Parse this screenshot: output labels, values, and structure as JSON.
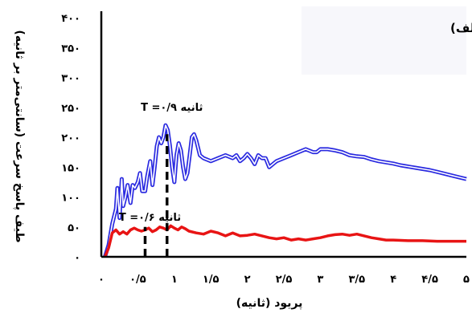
{
  "chart_data": {
    "type": "line",
    "panel_label": "(الف)",
    "xlabel": "پریود (ثانیه)",
    "ylabel": "طیف پاسخ سرعت (سانتی‌متر بر ثانیه)",
    "xlim": [
      0,
      5
    ],
    "ylim": [
      0,
      400
    ],
    "x_ticks": [
      {
        "value": 0,
        "label": "۰"
      },
      {
        "value": 0.5,
        "label": "۰/۵"
      },
      {
        "value": 1,
        "label": "۱"
      },
      {
        "value": 1.5,
        "label": "۱/۵"
      },
      {
        "value": 2,
        "label": "۲"
      },
      {
        "value": 2.5,
        "label": "۲/۵"
      },
      {
        "value": 3,
        "label": "۳"
      },
      {
        "value": 3.5,
        "label": "۳/۵"
      },
      {
        "value": 4,
        "label": "۴"
      },
      {
        "value": 4.5,
        "label": "۴/۵"
      },
      {
        "value": 5,
        "label": "۵"
      }
    ],
    "y_ticks": [
      {
        "value": 0,
        "label": "۰"
      },
      {
        "value": 50,
        "label": "۵۰"
      },
      {
        "value": 100,
        "label": "۱۰۰"
      },
      {
        "value": 150,
        "label": "۱۵۰"
      },
      {
        "value": 200,
        "label": "۲۰۰"
      },
      {
        "value": 250,
        "label": "۲۵۰"
      },
      {
        "value": 300,
        "label": "۳۰۰"
      },
      {
        "value": 350,
        "label": "۳۵۰"
      },
      {
        "value": 400,
        "label": "۴۰۰"
      }
    ],
    "series": [
      {
        "color": "#2a2ae0",
        "points": [
          [
            0.05,
            0
          ],
          [
            0.1,
            20
          ],
          [
            0.15,
            55
          ],
          [
            0.2,
            80
          ],
          [
            0.22,
            115
          ],
          [
            0.25,
            65
          ],
          [
            0.28,
            130
          ],
          [
            0.3,
            85
          ],
          [
            0.33,
            100
          ],
          [
            0.36,
            120
          ],
          [
            0.38,
            105
          ],
          [
            0.4,
            90
          ],
          [
            0.43,
            120
          ],
          [
            0.46,
            115
          ],
          [
            0.5,
            125
          ],
          [
            0.53,
            140
          ],
          [
            0.56,
            110
          ],
          [
            0.6,
            110
          ],
          [
            0.63,
            135
          ],
          [
            0.67,
            160
          ],
          [
            0.7,
            120
          ],
          [
            0.73,
            150
          ],
          [
            0.76,
            185
          ],
          [
            0.79,
            200
          ],
          [
            0.82,
            190
          ],
          [
            0.85,
            200
          ],
          [
            0.88,
            220
          ],
          [
            0.91,
            212
          ],
          [
            0.94,
            185
          ],
          [
            0.97,
            150
          ],
          [
            1.0,
            125
          ],
          [
            1.03,
            170
          ],
          [
            1.06,
            190
          ],
          [
            1.09,
            178
          ],
          [
            1.12,
            150
          ],
          [
            1.15,
            130
          ],
          [
            1.18,
            140
          ],
          [
            1.21,
            170
          ],
          [
            1.24,
            200
          ],
          [
            1.27,
            205
          ],
          [
            1.3,
            195
          ],
          [
            1.35,
            170
          ],
          [
            1.4,
            165
          ],
          [
            1.5,
            160
          ],
          [
            1.6,
            165
          ],
          [
            1.7,
            170
          ],
          [
            1.8,
            165
          ],
          [
            1.85,
            170
          ],
          [
            1.9,
            160
          ],
          [
            1.95,
            165
          ],
          [
            2.0,
            172
          ],
          [
            2.05,
            165
          ],
          [
            2.1,
            155
          ],
          [
            2.15,
            170
          ],
          [
            2.2,
            165
          ],
          [
            2.25,
            165
          ],
          [
            2.3,
            150
          ],
          [
            2.35,
            155
          ],
          [
            2.4,
            160
          ],
          [
            2.5,
            165
          ],
          [
            2.6,
            170
          ],
          [
            2.7,
            175
          ],
          [
            2.8,
            180
          ],
          [
            2.9,
            175
          ],
          [
            2.95,
            175
          ],
          [
            3.0,
            180
          ],
          [
            3.1,
            180
          ],
          [
            3.2,
            178
          ],
          [
            3.3,
            175
          ],
          [
            3.4,
            170
          ],
          [
            3.5,
            168
          ],
          [
            3.6,
            167
          ],
          [
            3.7,
            163
          ],
          [
            3.8,
            160
          ],
          [
            3.9,
            158
          ],
          [
            4.0,
            156
          ],
          [
            4.1,
            153
          ],
          [
            4.2,
            151
          ],
          [
            4.3,
            149
          ],
          [
            4.4,
            147
          ],
          [
            4.5,
            145
          ],
          [
            4.6,
            142
          ],
          [
            4.7,
            139
          ],
          [
            4.8,
            136
          ],
          [
            4.9,
            133
          ],
          [
            5.0,
            130
          ]
        ]
      },
      {
        "color": "#e81414",
        "points": [
          [
            0.05,
            0
          ],
          [
            0.1,
            15
          ],
          [
            0.15,
            40
          ],
          [
            0.2,
            45
          ],
          [
            0.25,
            38
          ],
          [
            0.3,
            42
          ],
          [
            0.35,
            38
          ],
          [
            0.4,
            45
          ],
          [
            0.45,
            48
          ],
          [
            0.5,
            45
          ],
          [
            0.55,
            43
          ],
          [
            0.6,
            45
          ],
          [
            0.65,
            48
          ],
          [
            0.7,
            42
          ],
          [
            0.75,
            45
          ],
          [
            0.8,
            50
          ],
          [
            0.85,
            48
          ],
          [
            0.9,
            45
          ],
          [
            0.95,
            52
          ],
          [
            1.0,
            48
          ],
          [
            1.05,
            45
          ],
          [
            1.1,
            50
          ],
          [
            1.15,
            47
          ],
          [
            1.2,
            43
          ],
          [
            1.3,
            40
          ],
          [
            1.4,
            38
          ],
          [
            1.5,
            43
          ],
          [
            1.6,
            40
          ],
          [
            1.7,
            35
          ],
          [
            1.8,
            40
          ],
          [
            1.9,
            35
          ],
          [
            2.0,
            36
          ],
          [
            2.1,
            38
          ],
          [
            2.2,
            35
          ],
          [
            2.3,
            32
          ],
          [
            2.4,
            30
          ],
          [
            2.5,
            32
          ],
          [
            2.6,
            28
          ],
          [
            2.7,
            30
          ],
          [
            2.8,
            28
          ],
          [
            2.9,
            30
          ],
          [
            3.0,
            32
          ],
          [
            3.1,
            35
          ],
          [
            3.2,
            37
          ],
          [
            3.3,
            38
          ],
          [
            3.4,
            36
          ],
          [
            3.5,
            38
          ],
          [
            3.6,
            35
          ],
          [
            3.7,
            32
          ],
          [
            3.8,
            30
          ],
          [
            3.9,
            28
          ],
          [
            4.0,
            28
          ],
          [
            4.2,
            27
          ],
          [
            4.4,
            27
          ],
          [
            4.6,
            26
          ],
          [
            4.8,
            26
          ],
          [
            5.0,
            26
          ]
        ]
      }
    ],
    "markers": [
      {
        "x": 0.6,
        "label": "T =۰/۶ ثانیه",
        "ymax": 50
      },
      {
        "x": 0.9,
        "label": "T =۰/۹ ثانیه",
        "ymax": 205
      }
    ]
  }
}
